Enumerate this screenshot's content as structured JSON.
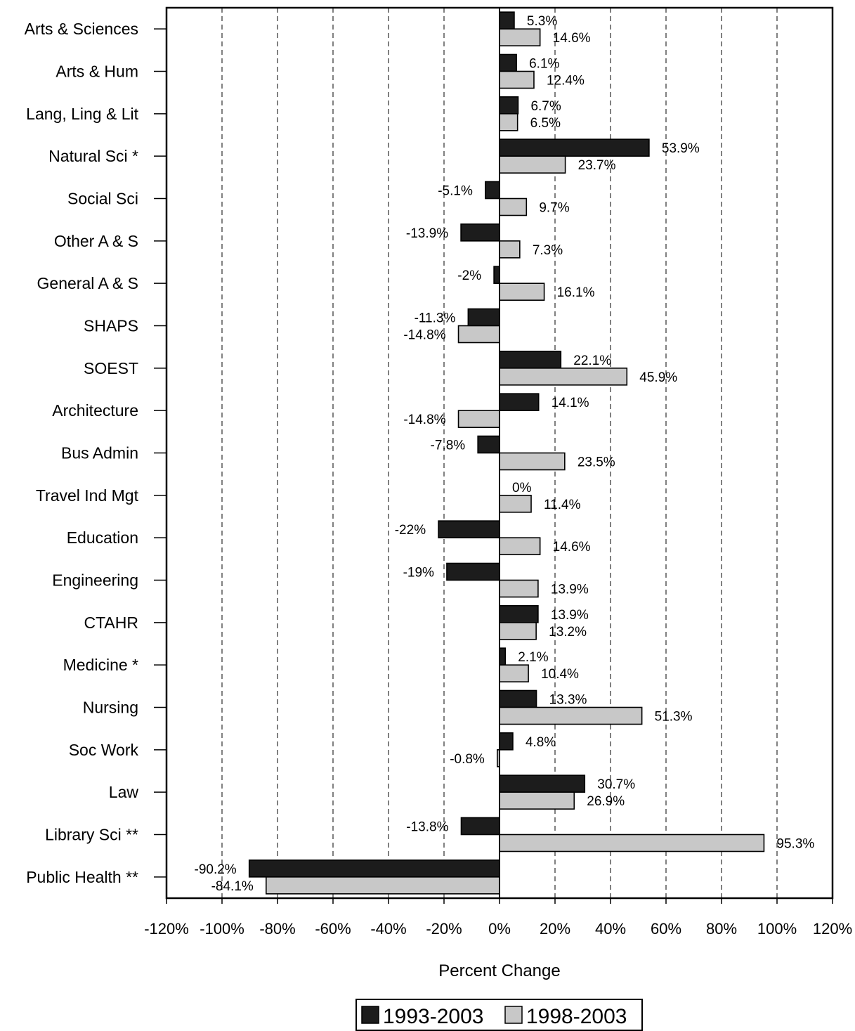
{
  "chart_data": {
    "type": "bar",
    "orientation": "horizontal",
    "title": "",
    "xlabel": "Percent Change",
    "ylabel": "",
    "xlim": [
      -120,
      120
    ],
    "xticks": [
      -120,
      -100,
      -80,
      -60,
      -40,
      -20,
      0,
      20,
      40,
      60,
      80,
      100,
      120
    ],
    "xtick_labels": [
      "-120%",
      "-100%",
      "-80%",
      "-60%",
      "-40%",
      "-20%",
      "0%",
      "20%",
      "40%",
      "60%",
      "80%",
      "100%",
      "120%"
    ],
    "grid": "vertical dashed",
    "legend_position": "bottom-center",
    "categories": [
      "Arts & Sciences",
      "Arts & Hum",
      "Lang, Ling & Lit",
      "Natural Sci *",
      "Social Sci",
      "Other A & S",
      "General A & S",
      "SHAPS",
      "SOEST",
      "Architecture",
      "Bus Admin",
      "Travel Ind Mgt",
      "Education",
      "Engineering",
      "CTAHR",
      "Medicine *",
      "Nursing",
      "Soc Work",
      "Law",
      "Library Sci **",
      "Public Health **"
    ],
    "series": [
      {
        "name": "1993-2003",
        "color": "#1c1c1c",
        "values": [
          5.3,
          6.1,
          6.7,
          53.9,
          -5.1,
          -13.9,
          -2,
          -11.3,
          22.1,
          14.1,
          -7.8,
          0,
          -22,
          -19,
          13.9,
          2.1,
          13.3,
          4.8,
          30.7,
          -13.8,
          -90.2
        ],
        "labels": [
          "5.3%",
          "6.1%",
          "6.7%",
          "53.9%",
          "-5.1%",
          "-13.9%",
          "-2%",
          "-11.3%",
          "22.1%",
          "14.1%",
          "-7.8%",
          "0%",
          "-22%",
          "-19%",
          "13.9%",
          "2.1%",
          "13.3%",
          "4.8%",
          "30.7%",
          "-13.8%",
          "-90.2%"
        ]
      },
      {
        "name": "1998-2003",
        "color": "#c8c8c8",
        "values": [
          14.6,
          12.4,
          6.5,
          23.7,
          9.7,
          7.3,
          16.1,
          -14.8,
          45.9,
          -14.8,
          23.5,
          11.4,
          14.6,
          13.9,
          13.2,
          10.4,
          51.3,
          -0.8,
          26.9,
          95.3,
          -84.1
        ],
        "labels": [
          "14.6%",
          "12.4%",
          "6.5%",
          "23.7%",
          "9.7%",
          "7.3%",
          "16.1%",
          "-14.8%",
          "45.9%",
          "-14.8%",
          "23.5%",
          "11.4%",
          "14.6%",
          "13.9%",
          "13.2%",
          "10.4%",
          "51.3%",
          "-0.8%",
          "26.9%",
          "95.3%",
          "-84.1%"
        ]
      }
    ]
  }
}
